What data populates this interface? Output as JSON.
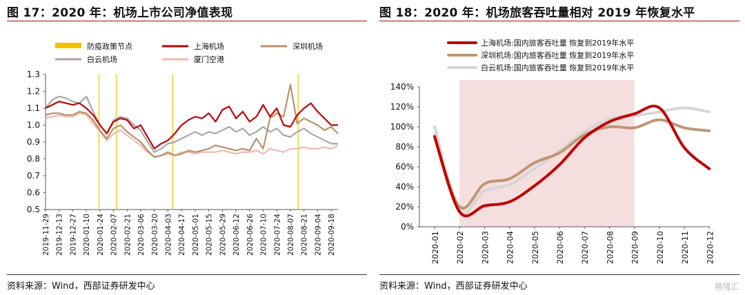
{
  "left_panel": {
    "title": "图 17：2020 年：机场上市公司净值表现",
    "source": "资料来源：Wind，西部证券研发中心"
  },
  "right_panel": {
    "title": "图 18：2020 年：机场旅客吞吐量相对 2019 年恢复水平",
    "source": "资料来源：Wind，西部证券研发中心"
  },
  "watermark": "格隆汇",
  "chart_data": [
    {
      "type": "line",
      "title": "",
      "ylim": [
        0.5,
        1.3
      ],
      "yticks": [
        "0.5",
        "0.6",
        "0.7",
        "0.8",
        "0.9",
        "1.0",
        "1.1",
        "1.2",
        "1.3"
      ],
      "xtick_labels": [
        "2019-11-29",
        "2019-12-13",
        "2019-12-27",
        "2020-01-10",
        "2020-01-24",
        "2020-02-07",
        "2020-02-21",
        "2020-03-06",
        "2020-03-20",
        "2020-04-03",
        "2020-04-17",
        "2020-05-01",
        "2020-05-15",
        "2020-05-29",
        "2020-06-12",
        "2020-06-26",
        "2020-07-10",
        "2020-07-24",
        "2020-08-07",
        "2020-08-21",
        "2020-09-04",
        "2020-09-18"
      ],
      "legend": [
        {
          "name": "防疫政策节点",
          "color": "#f2c200"
        },
        {
          "name": "上海机场",
          "color": "#c00000"
        },
        {
          "name": "深圳机场",
          "color": "#b8906a"
        },
        {
          "name": "白云机场",
          "color": "#a6a6a6"
        },
        {
          "name": "厦门空港",
          "color": "#f2b8a8"
        }
      ],
      "policy_dates": [
        "2020-01-23",
        "2020-02-10",
        "2020-04-08",
        "2020-08-15"
      ],
      "series": [
        {
          "name": "上海机场",
          "color": "#c00000",
          "values": [
            [
              "2019-11-29",
              1.1
            ],
            [
              "2019-12-06",
              1.12
            ],
            [
              "2019-12-13",
              1.14
            ],
            [
              "2019-12-20",
              1.13
            ],
            [
              "2019-12-27",
              1.12
            ],
            [
              "2020-01-03",
              1.13
            ],
            [
              "2020-01-10",
              1.1
            ],
            [
              "2020-01-17",
              1.06
            ],
            [
              "2020-01-24",
              1.0
            ],
            [
              "2020-01-31",
              0.95
            ],
            [
              "2020-02-07",
              1.02
            ],
            [
              "2020-02-14",
              1.04
            ],
            [
              "2020-02-21",
              1.03
            ],
            [
              "2020-02-28",
              0.98
            ],
            [
              "2020-03-06",
              1.0
            ],
            [
              "2020-03-13",
              0.93
            ],
            [
              "2020-03-20",
              0.86
            ],
            [
              "2020-03-27",
              0.89
            ],
            [
              "2020-04-03",
              0.91
            ],
            [
              "2020-04-10",
              0.95
            ],
            [
              "2020-04-17",
              1.0
            ],
            [
              "2020-04-24",
              1.03
            ],
            [
              "2020-05-01",
              1.05
            ],
            [
              "2020-05-08",
              1.04
            ],
            [
              "2020-05-15",
              1.07
            ],
            [
              "2020-05-22",
              1.02
            ],
            [
              "2020-05-29",
              1.09
            ],
            [
              "2020-06-05",
              1.11
            ],
            [
              "2020-06-12",
              1.04
            ],
            [
              "2020-06-19",
              1.08
            ],
            [
              "2020-06-26",
              1.02
            ],
            [
              "2020-07-03",
              1.05
            ],
            [
              "2020-07-10",
              1.12
            ],
            [
              "2020-07-17",
              1.05
            ],
            [
              "2020-07-24",
              1.1
            ],
            [
              "2020-07-31",
              1.0
            ],
            [
              "2020-08-07",
              0.99
            ],
            [
              "2020-08-14",
              1.06
            ],
            [
              "2020-08-21",
              1.1
            ],
            [
              "2020-08-28",
              1.13
            ],
            [
              "2020-09-04",
              1.08
            ],
            [
              "2020-09-11",
              1.04
            ],
            [
              "2020-09-18",
              1.0
            ],
            [
              "2020-09-25",
              1.0
            ]
          ]
        },
        {
          "name": "深圳机场",
          "color": "#b8906a",
          "values": [
            [
              "2019-11-29",
              1.06
            ],
            [
              "2019-12-06",
              1.07
            ],
            [
              "2019-12-13",
              1.07
            ],
            [
              "2019-12-20",
              1.06
            ],
            [
              "2019-12-27",
              1.06
            ],
            [
              "2020-01-03",
              1.08
            ],
            [
              "2020-01-10",
              1.07
            ],
            [
              "2020-01-17",
              1.03
            ],
            [
              "2020-01-24",
              0.97
            ],
            [
              "2020-01-31",
              0.92
            ],
            [
              "2020-02-07",
              0.98
            ],
            [
              "2020-02-14",
              1.0
            ],
            [
              "2020-02-21",
              0.96
            ],
            [
              "2020-02-28",
              0.93
            ],
            [
              "2020-03-06",
              0.9
            ],
            [
              "2020-03-13",
              0.85
            ],
            [
              "2020-03-20",
              0.81
            ],
            [
              "2020-03-27",
              0.82
            ],
            [
              "2020-04-03",
              0.84
            ],
            [
              "2020-04-10",
              0.82
            ],
            [
              "2020-04-17",
              0.83
            ],
            [
              "2020-04-24",
              0.85
            ],
            [
              "2020-05-01",
              0.84
            ],
            [
              "2020-05-08",
              0.85
            ],
            [
              "2020-05-15",
              0.86
            ],
            [
              "2020-05-22",
              0.88
            ],
            [
              "2020-05-29",
              0.87
            ],
            [
              "2020-06-05",
              0.86
            ],
            [
              "2020-06-12",
              0.85
            ],
            [
              "2020-06-19",
              0.86
            ],
            [
              "2020-06-26",
              0.85
            ],
            [
              "2020-07-03",
              0.92
            ],
            [
              "2020-07-10",
              0.86
            ],
            [
              "2020-07-17",
              1.04
            ],
            [
              "2020-07-24",
              1.07
            ],
            [
              "2020-07-31",
              1.05
            ],
            [
              "2020-08-07",
              1.24
            ],
            [
              "2020-08-14",
              1.01
            ],
            [
              "2020-08-21",
              1.04
            ],
            [
              "2020-08-28",
              1.02
            ],
            [
              "2020-09-04",
              1.0
            ],
            [
              "2020-09-11",
              0.97
            ],
            [
              "2020-09-18",
              0.99
            ],
            [
              "2020-09-25",
              0.95
            ]
          ]
        },
        {
          "name": "白云机场",
          "color": "#a6a6a6",
          "values": [
            [
              "2019-11-29",
              1.1
            ],
            [
              "2019-12-06",
              1.15
            ],
            [
              "2019-12-13",
              1.17
            ],
            [
              "2019-12-20",
              1.16
            ],
            [
              "2019-12-27",
              1.14
            ],
            [
              "2020-01-03",
              1.13
            ],
            [
              "2020-01-10",
              1.17
            ],
            [
              "2020-01-17",
              1.08
            ],
            [
              "2020-01-24",
              1.0
            ],
            [
              "2020-01-31",
              0.95
            ],
            [
              "2020-02-07",
              1.03
            ],
            [
              "2020-02-14",
              1.05
            ],
            [
              "2020-02-21",
              1.04
            ],
            [
              "2020-02-28",
              1.0
            ],
            [
              "2020-03-06",
              0.97
            ],
            [
              "2020-03-13",
              0.9
            ],
            [
              "2020-03-20",
              0.84
            ],
            [
              "2020-03-27",
              0.86
            ],
            [
              "2020-04-03",
              0.89
            ],
            [
              "2020-04-10",
              0.9
            ],
            [
              "2020-04-17",
              0.92
            ],
            [
              "2020-04-24",
              0.94
            ],
            [
              "2020-05-01",
              0.96
            ],
            [
              "2020-05-08",
              0.94
            ],
            [
              "2020-05-15",
              0.96
            ],
            [
              "2020-05-22",
              0.95
            ],
            [
              "2020-05-29",
              0.97
            ],
            [
              "2020-06-05",
              0.99
            ],
            [
              "2020-06-12",
              0.96
            ],
            [
              "2020-06-19",
              0.98
            ],
            [
              "2020-06-26",
              0.94
            ],
            [
              "2020-07-03",
              0.96
            ],
            [
              "2020-07-10",
              0.99
            ],
            [
              "2020-07-17",
              0.96
            ],
            [
              "2020-07-24",
              0.98
            ],
            [
              "2020-07-31",
              0.94
            ],
            [
              "2020-08-07",
              0.93
            ],
            [
              "2020-08-14",
              0.96
            ],
            [
              "2020-08-21",
              0.98
            ],
            [
              "2020-08-28",
              0.95
            ],
            [
              "2020-09-04",
              0.93
            ],
            [
              "2020-09-11",
              0.91
            ],
            [
              "2020-09-18",
              0.89
            ],
            [
              "2020-09-25",
              0.89
            ]
          ]
        },
        {
          "name": "厦门空港",
          "color": "#f2b8a8",
          "values": [
            [
              "2019-11-29",
              1.04
            ],
            [
              "2019-12-06",
              1.05
            ],
            [
              "2019-12-13",
              1.06
            ],
            [
              "2019-12-20",
              1.05
            ],
            [
              "2019-12-27",
              1.05
            ],
            [
              "2020-01-03",
              1.07
            ],
            [
              "2020-01-10",
              1.06
            ],
            [
              "2020-01-17",
              1.01
            ],
            [
              "2020-01-24",
              0.96
            ],
            [
              "2020-01-31",
              0.91
            ],
            [
              "2020-02-07",
              0.95
            ],
            [
              "2020-02-14",
              0.97
            ],
            [
              "2020-02-21",
              0.94
            ],
            [
              "2020-02-28",
              0.91
            ],
            [
              "2020-03-06",
              0.88
            ],
            [
              "2020-03-13",
              0.84
            ],
            [
              "2020-03-20",
              0.81
            ],
            [
              "2020-03-27",
              0.82
            ],
            [
              "2020-04-03",
              0.83
            ],
            [
              "2020-04-10",
              0.82
            ],
            [
              "2020-04-17",
              0.84
            ],
            [
              "2020-04-24",
              0.84
            ],
            [
              "2020-05-01",
              0.83
            ],
            [
              "2020-05-08",
              0.84
            ],
            [
              "2020-05-15",
              0.84
            ],
            [
              "2020-05-22",
              0.84
            ],
            [
              "2020-05-29",
              0.85
            ],
            [
              "2020-06-05",
              0.84
            ],
            [
              "2020-06-12",
              0.83
            ],
            [
              "2020-06-19",
              0.84
            ],
            [
              "2020-06-26",
              0.84
            ],
            [
              "2020-07-03",
              0.85
            ],
            [
              "2020-07-10",
              0.83
            ],
            [
              "2020-07-17",
              0.86
            ],
            [
              "2020-07-24",
              0.85
            ],
            [
              "2020-07-31",
              0.84
            ],
            [
              "2020-08-07",
              0.86
            ],
            [
              "2020-08-14",
              0.86
            ],
            [
              "2020-08-21",
              0.87
            ],
            [
              "2020-08-28",
              0.86
            ],
            [
              "2020-09-04",
              0.86
            ],
            [
              "2020-09-11",
              0.87
            ],
            [
              "2020-09-18",
              0.86
            ],
            [
              "2020-09-25",
              0.88
            ]
          ]
        }
      ]
    },
    {
      "type": "line",
      "title": "",
      "categories": [
        "2020-01",
        "2020-02",
        "2020-03",
        "2020-04",
        "2020-05",
        "2020-06",
        "2020-07",
        "2020-08",
        "2020-09",
        "2020-10",
        "2020-11",
        "2020-12"
      ],
      "ylim": [
        0,
        1.4
      ],
      "yticks": [
        "0%",
        "20%",
        "40%",
        "60%",
        "80%",
        "100%",
        "120%",
        "140%"
      ],
      "shaded_range": [
        "2020-02",
        "2020-09"
      ],
      "shaded_color": "#f5dede",
      "legend_position": "top-left",
      "series": [
        {
          "name": "上海机场:国内旅客吞吐量 恢复到2019年水平",
          "color": "#c00000",
          "values": [
            0.9,
            0.15,
            0.21,
            0.25,
            0.41,
            0.62,
            0.89,
            1.05,
            1.13,
            1.19,
            0.79,
            0.58
          ]
        },
        {
          "name": "深圳机场:国内旅客吞吐量 恢复到2019年水平",
          "color": "#c09572",
          "values": [
            0.91,
            0.2,
            0.43,
            0.48,
            0.64,
            0.74,
            0.92,
            1.0,
            0.99,
            1.07,
            0.99,
            0.96
          ]
        },
        {
          "name": "白云机场:国内旅客吞吐量 恢复到2019年水平",
          "color": "#d6d6d6",
          "values": [
            1.0,
            0.16,
            0.36,
            0.42,
            0.58,
            0.76,
            0.95,
            1.08,
            1.11,
            1.15,
            1.19,
            1.15
          ]
        }
      ]
    }
  ]
}
